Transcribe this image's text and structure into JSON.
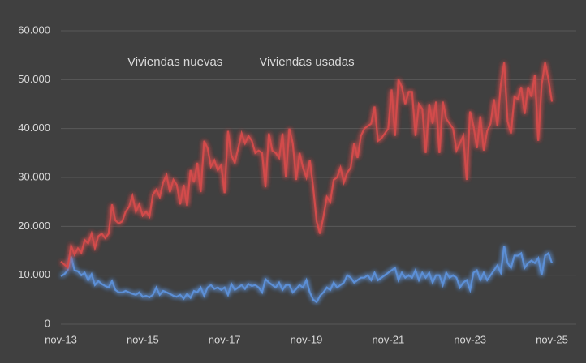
{
  "chart_data": {
    "type": "line",
    "categories": [
      "nov-13",
      null,
      null,
      null,
      null,
      null,
      null,
      null,
      null,
      null,
      null,
      null,
      null,
      null,
      null,
      null,
      null,
      null,
      null,
      null,
      null,
      null,
      null,
      null,
      "nov-15",
      null,
      null,
      null,
      null,
      null,
      null,
      null,
      null,
      null,
      null,
      null,
      null,
      null,
      null,
      null,
      null,
      null,
      null,
      null,
      null,
      null,
      null,
      null,
      "nov-17",
      null,
      null,
      null,
      null,
      null,
      null,
      null,
      null,
      null,
      null,
      null,
      null,
      null,
      null,
      null,
      null,
      null,
      null,
      null,
      null,
      null,
      null,
      null,
      "nov-19",
      null,
      null,
      null,
      null,
      null,
      null,
      null,
      null,
      null,
      null,
      null,
      null,
      null,
      null,
      null,
      null,
      null,
      null,
      null,
      null,
      null,
      null,
      null,
      "nov-21",
      null,
      null,
      null,
      null,
      null,
      null,
      null,
      null,
      null,
      null,
      null,
      null,
      null,
      null,
      null,
      null,
      null,
      null,
      null,
      null,
      null,
      null,
      null,
      "nov-23",
      null,
      null,
      null,
      null,
      null,
      null,
      null,
      null,
      null,
      null,
      null,
      null,
      null,
      null,
      null,
      null,
      null,
      null,
      null,
      null,
      null,
      null,
      null,
      "nov-25"
    ],
    "series": [
      {
        "name": "Viviendas nuevas",
        "color": "#5b8fd6",
        "values": [
          9800,
          10200,
          11000,
          13800,
          11000,
          10800,
          10000,
          10500,
          9000,
          10200,
          8000,
          8800,
          8200,
          7800,
          7500,
          8800,
          7000,
          6500,
          6500,
          6800,
          6500,
          6200,
          6000,
          6500,
          5600,
          5800,
          5500,
          6000,
          7500,
          6000,
          6800,
          6500,
          6200,
          5800,
          5600,
          6000,
          5200,
          6200,
          5400,
          6800,
          6500,
          7500,
          5800,
          7500,
          8000,
          7200,
          7500,
          7000,
          7500,
          6000,
          8200,
          7000,
          7500,
          8000,
          7200,
          8200,
          7800,
          8000,
          7500,
          6500,
          9200,
          8500,
          8000,
          7500,
          8500,
          7000,
          8000,
          8000,
          6500,
          7200,
          8000,
          7500,
          9000,
          6500,
          5000,
          4500,
          5800,
          6500,
          7500,
          7000,
          8500,
          7500,
          8000,
          8500,
          10000,
          9500,
          8500,
          9000,
          9500,
          9500,
          10000,
          9000,
          10500,
          9000,
          9500,
          10000,
          10500,
          11000,
          11500,
          9000,
          10500,
          9500,
          10000,
          9500,
          11000,
          9000,
          10500,
          9500,
          10500,
          8500,
          10000,
          10000,
          8000,
          10500,
          9500,
          10000,
          9500,
          7500,
          8500,
          9000,
          7000,
          10500,
          11000,
          9000,
          10500,
          9000,
          10000,
          11000,
          12000,
          10500,
          16000,
          12500,
          11500,
          14000,
          14000,
          14500,
          11500,
          12500,
          13000,
          12500,
          13500,
          10000,
          14000,
          14500,
          12500
        ]
      },
      {
        "name": "Viviendas usadas",
        "color": "#d24b4b",
        "values": [
          12800,
          12200,
          11600,
          16000,
          14200,
          15500,
          14600,
          17200,
          16500,
          18500,
          15600,
          18000,
          18500,
          17600,
          18500,
          24500,
          21200,
          20600,
          21000,
          23000,
          24000,
          26200,
          23000,
          24500,
          22200,
          23000,
          22000,
          26500,
          27500,
          26000,
          29000,
          30500,
          27000,
          29500,
          28500,
          24500,
          28500,
          24200,
          31500,
          29000,
          33000,
          27000,
          37500,
          36000,
          32200,
          33500,
          31500,
          32500,
          26800,
          39500,
          34500,
          33000,
          36000,
          39000,
          37000,
          38500,
          37500,
          35000,
          35500,
          35000,
          28000,
          39000,
          35500,
          35000,
          34000,
          39000,
          30000,
          40000,
          37000,
          29500,
          35000,
          32000,
          30000,
          33500,
          28000,
          21000,
          18500,
          22000,
          26000,
          25000,
          29500,
          30000,
          32000,
          29000,
          31000,
          32000,
          37000,
          34000,
          38500,
          40000,
          40500,
          41000,
          44500,
          37500,
          38000,
          39000,
          40000,
          48000,
          38500,
          50000,
          48500,
          45000,
          47500,
          47500,
          38500,
          45000,
          44000,
          35000,
          45000,
          41000,
          45500,
          35000,
          45500,
          42000,
          41000,
          40000,
          35500,
          37000,
          38500,
          29500,
          43500,
          40500,
          36000,
          42500,
          35500,
          39500,
          41000,
          46000,
          40500,
          49000,
          53500,
          41500,
          39000,
          46500,
          46000,
          48500,
          43000,
          48500,
          46500,
          51000,
          37500,
          49000,
          53500,
          50000,
          45500
        ]
      }
    ],
    "ylim": [
      0,
      60000
    ],
    "yticks": [
      0,
      {
        "value": 10000,
        "label": "10.000"
      },
      {
        "value": 20000,
        "label": "20.000"
      },
      {
        "value": 30000,
        "label": "30.000"
      },
      {
        "value": 40000,
        "label": "40.000"
      },
      {
        "value": 50000,
        "label": "50.000"
      },
      {
        "value": 60000,
        "label": "60.000"
      }
    ],
    "grid": true,
    "legend": "top-left"
  }
}
